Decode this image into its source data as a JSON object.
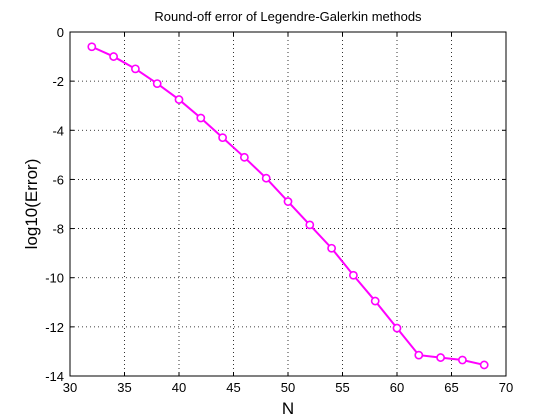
{
  "chart_data": {
    "type": "line",
    "title": "Round-off error of Legendre-Galerkin methods",
    "xlabel": "N",
    "ylabel": "log10(Error)",
    "xlim": [
      30,
      70
    ],
    "ylim": [
      -14,
      0
    ],
    "xticks": [
      30,
      35,
      40,
      45,
      50,
      55,
      60,
      65,
      70
    ],
    "yticks": [
      0,
      -2,
      -4,
      -6,
      -8,
      -10,
      -12,
      -14
    ],
    "grid": true,
    "series": [
      {
        "color": "#ff00ff",
        "marker": "circle",
        "x": [
          32,
          34,
          36,
          38,
          40,
          42,
          44,
          46,
          48,
          50,
          52,
          54,
          56,
          58,
          60,
          62,
          64,
          66,
          68
        ],
        "y": [
          -0.6,
          -1.0,
          -1.5,
          -2.1,
          -2.75,
          -3.5,
          -4.3,
          -5.1,
          -5.95,
          -6.9,
          -7.85,
          -8.8,
          -9.9,
          -10.95,
          -12.05,
          -13.15,
          -13.25,
          -13.35,
          -13.55
        ]
      }
    ]
  }
}
